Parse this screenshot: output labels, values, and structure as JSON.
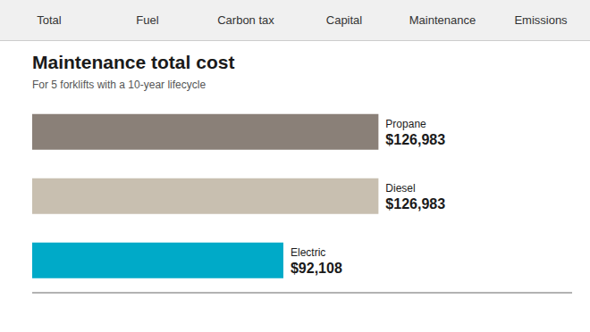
{
  "chart_data": {
    "type": "bar",
    "title": "Maintenance total cost",
    "subtitle": "For 5 forklifts with a 10-year lifecycle",
    "annotations": [
      "Total",
      "Fuel",
      "Carbon tax",
      "Capital",
      "Maintenance",
      "Emissions"
    ],
    "orientation": "horizontal",
    "categories": [
      "Propane",
      "Diesel",
      "Electric"
    ],
    "values": [
      126983,
      126983,
      92108
    ],
    "value_labels": [
      "$126,983",
      "$126,983",
      "$92,108"
    ],
    "colors": [
      "#8a8078",
      "#c8bfb0",
      "#00aac8"
    ],
    "xlim": [
      0,
      198000
    ],
    "grid": false,
    "tick_labels": false,
    "data_labels": true
  }
}
